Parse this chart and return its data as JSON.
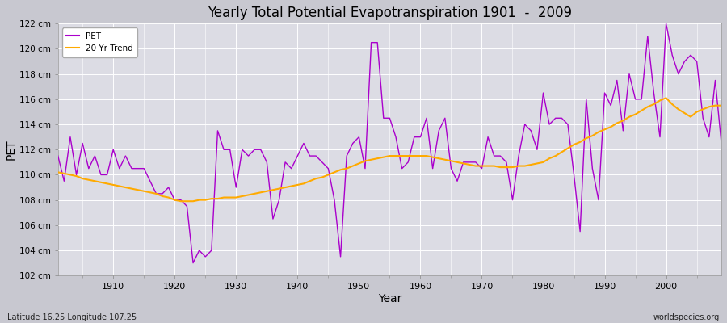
{
  "title": "Yearly Total Potential Evapotranspiration 1901  -  2009",
  "xlabel": "Year",
  "ylabel": "PET",
  "subtitle": "Latitude 16.25 Longitude 107.25",
  "watermark": "worldspecies.org",
  "fig_facecolor": "#c8c8d0",
  "plot_bg_color": "#dcdce4",
  "pet_color": "#aa00cc",
  "trend_color": "#ffaa00",
  "grid_color": "#ffffff",
  "ylim": [
    102,
    122
  ],
  "yticks": [
    102,
    104,
    106,
    108,
    110,
    112,
    114,
    116,
    118,
    120,
    122
  ],
  "ytick_labels": [
    "102 cm",
    "104 cm",
    "106 cm",
    "108 cm",
    "110 cm",
    "112 cm",
    "114 cm",
    "116 cm",
    "118 cm",
    "120 cm",
    "122 cm"
  ],
  "xticks": [
    1910,
    1920,
    1930,
    1940,
    1950,
    1960,
    1970,
    1980,
    1990,
    2000
  ],
  "years": [
    1901,
    1902,
    1903,
    1904,
    1905,
    1906,
    1907,
    1908,
    1909,
    1910,
    1911,
    1912,
    1913,
    1914,
    1915,
    1916,
    1917,
    1918,
    1919,
    1920,
    1921,
    1922,
    1923,
    1924,
    1925,
    1926,
    1927,
    1928,
    1929,
    1930,
    1931,
    1932,
    1933,
    1934,
    1935,
    1936,
    1937,
    1938,
    1939,
    1940,
    1941,
    1942,
    1943,
    1944,
    1945,
    1946,
    1947,
    1948,
    1949,
    1950,
    1951,
    1952,
    1953,
    1954,
    1955,
    1956,
    1957,
    1958,
    1959,
    1960,
    1961,
    1962,
    1963,
    1964,
    1965,
    1966,
    1967,
    1968,
    1969,
    1970,
    1971,
    1972,
    1973,
    1974,
    1975,
    1976,
    1977,
    1978,
    1979,
    1980,
    1981,
    1982,
    1983,
    1984,
    1985,
    1986,
    1987,
    1988,
    1989,
    1990,
    1991,
    1992,
    1993,
    1994,
    1995,
    1996,
    1997,
    1998,
    1999,
    2000,
    2001,
    2002,
    2003,
    2004,
    2005,
    2006,
    2007,
    2008,
    2009
  ],
  "pet_values": [
    111.5,
    109.5,
    113.0,
    110.0,
    112.5,
    110.5,
    111.5,
    110.0,
    110.0,
    112.0,
    110.5,
    111.5,
    110.5,
    110.5,
    110.5,
    109.5,
    108.5,
    108.5,
    109.0,
    108.0,
    108.0,
    107.5,
    103.0,
    104.0,
    103.5,
    104.0,
    113.5,
    112.0,
    112.0,
    109.0,
    112.0,
    111.5,
    112.0,
    112.0,
    111.0,
    106.5,
    108.0,
    111.0,
    110.5,
    111.5,
    112.5,
    111.5,
    111.5,
    111.0,
    110.5,
    108.0,
    103.5,
    111.5,
    112.5,
    113.0,
    110.5,
    120.5,
    120.5,
    114.5,
    114.5,
    113.0,
    110.5,
    111.0,
    113.0,
    113.0,
    114.5,
    110.5,
    113.5,
    114.5,
    110.5,
    109.5,
    111.0,
    111.0,
    111.0,
    110.5,
    113.0,
    111.5,
    111.5,
    111.0,
    108.0,
    111.5,
    114.0,
    113.5,
    112.0,
    116.5,
    114.0,
    114.5,
    114.5,
    114.0,
    110.0,
    105.5,
    116.0,
    110.5,
    108.0,
    116.5,
    115.5,
    117.5,
    113.5,
    118.0,
    116.0,
    116.0,
    121.0,
    116.5,
    113.0,
    122.0,
    119.5,
    118.0,
    119.0,
    119.5,
    119.0,
    114.5,
    113.0,
    117.5,
    112.5
  ],
  "trend_values": [
    110.2,
    110.1,
    110.0,
    109.9,
    109.7,
    109.6,
    109.5,
    109.4,
    109.3,
    109.2,
    109.1,
    109.0,
    108.9,
    108.8,
    108.7,
    108.6,
    108.5,
    108.3,
    108.2,
    108.0,
    107.9,
    107.9,
    107.9,
    108.0,
    108.0,
    108.1,
    108.1,
    108.2,
    108.2,
    108.2,
    108.3,
    108.4,
    108.5,
    108.6,
    108.7,
    108.8,
    108.9,
    109.0,
    109.1,
    109.2,
    109.3,
    109.5,
    109.7,
    109.8,
    110.0,
    110.2,
    110.4,
    110.5,
    110.7,
    110.9,
    111.1,
    111.2,
    111.3,
    111.4,
    111.5,
    111.5,
    111.5,
    111.5,
    111.5,
    111.5,
    111.5,
    111.4,
    111.3,
    111.2,
    111.1,
    111.0,
    110.9,
    110.8,
    110.7,
    110.7,
    110.7,
    110.7,
    110.6,
    110.6,
    110.6,
    110.7,
    110.7,
    110.8,
    110.9,
    111.0,
    111.3,
    111.5,
    111.8,
    112.1,
    112.4,
    112.6,
    112.9,
    113.1,
    113.4,
    113.6,
    113.8,
    114.1,
    114.3,
    114.6,
    114.8,
    115.1,
    115.4,
    115.6,
    115.9,
    116.1,
    115.6,
    115.2,
    114.9,
    114.6,
    115.0,
    115.2,
    115.4,
    115.5,
    115.5
  ]
}
